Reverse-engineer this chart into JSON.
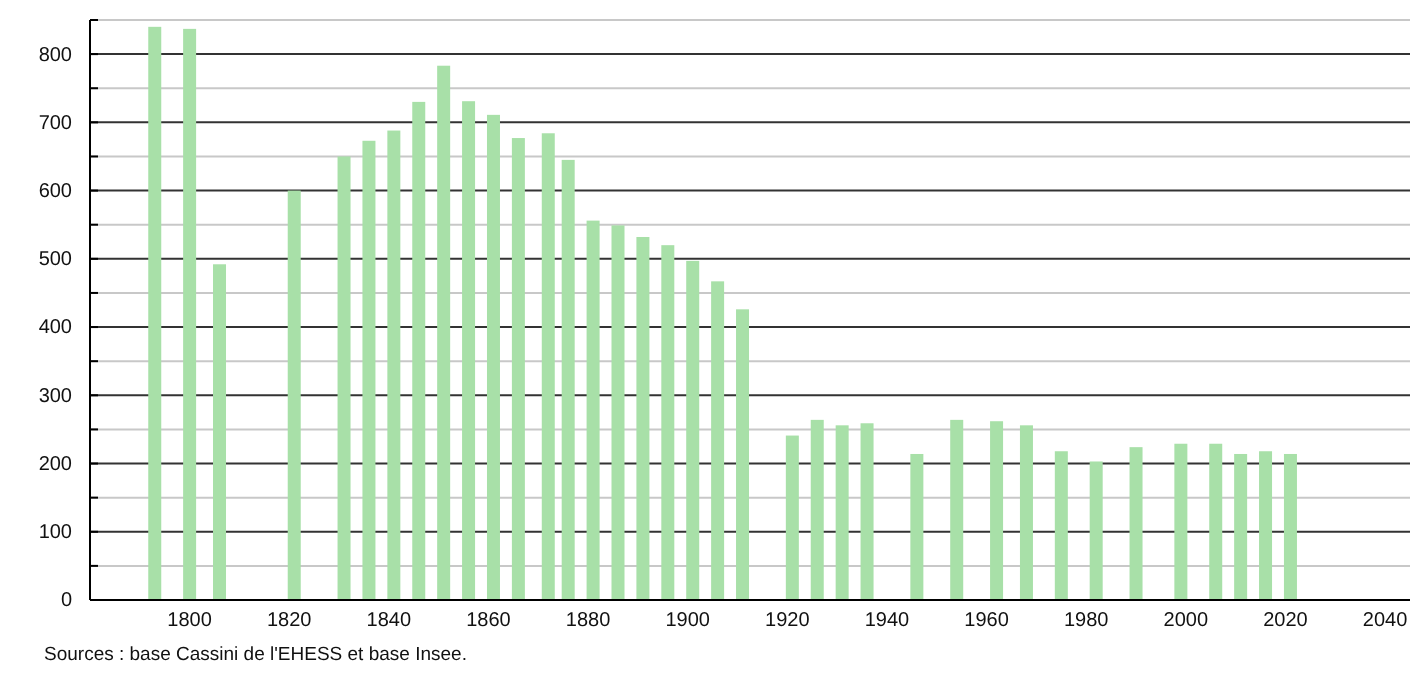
{
  "chart_data": {
    "type": "bar",
    "x": [
      1793,
      1800,
      1806,
      1821,
      1831,
      1836,
      1841,
      1846,
      1851,
      1856,
      1861,
      1866,
      1872,
      1876,
      1881,
      1886,
      1891,
      1896,
      1901,
      1906,
      1911,
      1921,
      1926,
      1931,
      1936,
      1946,
      1954,
      1962,
      1968,
      1975,
      1982,
      1990,
      1999,
      2006,
      2011,
      2016,
      2021
    ],
    "values": [
      840,
      837,
      492,
      600,
      650,
      673,
      688,
      730,
      783,
      731,
      711,
      677,
      684,
      645,
      556,
      549,
      532,
      520,
      497,
      467,
      426,
      241,
      264,
      256,
      259,
      214,
      264,
      262,
      256,
      218,
      203,
      224,
      229,
      229,
      214,
      218,
      214
    ],
    "color": "#a8e0a8",
    "xlim": [
      1780,
      2045
    ],
    "xticks": [
      1800,
      1820,
      1840,
      1860,
      1880,
      1900,
      1920,
      1940,
      1960,
      1980,
      2000,
      2020,
      2040
    ],
    "ylim": [
      0,
      850
    ],
    "yticks": [
      0,
      {
        "value": 50,
        "label": null
      },
      100,
      {
        "value": 150,
        "label": null
      },
      200,
      {
        "value": 250,
        "label": null
      },
      300,
      {
        "value": 350,
        "label": null
      },
      400,
      {
        "value": 450,
        "label": null
      },
      500,
      {
        "value": 550,
        "label": null
      },
      600,
      {
        "value": 650,
        "label": null
      },
      700,
      {
        "value": 750,
        "label": null
      },
      800,
      {
        "value": 850,
        "label": null
      }
    ],
    "grid": "y",
    "annotations": [
      "Sources : base Cassini de l'EHESS et base Insee."
    ]
  }
}
